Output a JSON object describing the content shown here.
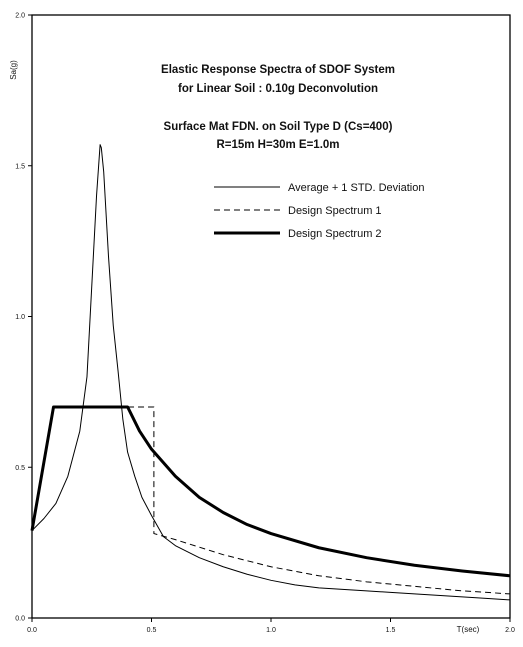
{
  "chart_data": {
    "type": "line",
    "title_lines": [
      "Elastic Response Spectra of SDOF System",
      "for Linear Soil : 0.10g Deconvolution",
      "Surface Mat FDN. on Soil Type D (Cs=400)",
      "R=15m H=30m E=1.0m"
    ],
    "xlabel": "T(sec)",
    "ylabel": "Sa(g)",
    "xlim": [
      0,
      2.0
    ],
    "ylim": [
      0,
      2.0
    ],
    "x_ticks": [
      "0.0",
      "0.5",
      "1.0",
      "1.5",
      "2.0"
    ],
    "y_ticks": [
      "0.0",
      "0.5",
      "1.0",
      "1.5",
      "2.0"
    ],
    "grid": false,
    "legend_position": "top-right",
    "series": [
      {
        "name": "Average + 1 STD. Deviation",
        "style": "solid-thin",
        "color": "#000000",
        "x": [
          0.0,
          0.05,
          0.1,
          0.15,
          0.2,
          0.23,
          0.25,
          0.27,
          0.285,
          0.29,
          0.3,
          0.32,
          0.34,
          0.36,
          0.38,
          0.4,
          0.43,
          0.46,
          0.5,
          0.55,
          0.6,
          0.7,
          0.8,
          0.9,
          1.0,
          1.1,
          1.2,
          1.3,
          1.4,
          1.5,
          1.6,
          1.7,
          1.8,
          1.9,
          2.0
        ],
        "y": [
          0.29,
          0.33,
          0.38,
          0.47,
          0.62,
          0.8,
          1.1,
          1.4,
          1.57,
          1.56,
          1.48,
          1.2,
          0.97,
          0.82,
          0.66,
          0.55,
          0.47,
          0.4,
          0.34,
          0.27,
          0.24,
          0.2,
          0.17,
          0.145,
          0.125,
          0.11,
          0.1,
          0.095,
          0.09,
          0.085,
          0.08,
          0.075,
          0.07,
          0.065,
          0.06
        ]
      },
      {
        "name": "Design Spectrum 1",
        "style": "dashed",
        "color": "#000000",
        "x": [
          0.0,
          0.09,
          0.51,
          0.51,
          0.6,
          0.8,
          1.0,
          1.2,
          1.4,
          1.6,
          1.8,
          2.0
        ],
        "y": [
          0.29,
          0.7,
          0.7,
          0.28,
          0.26,
          0.21,
          0.17,
          0.14,
          0.12,
          0.105,
          0.09,
          0.08
        ]
      },
      {
        "name": "Design Spectrum 2",
        "style": "solid-thick",
        "color": "#000000",
        "x": [
          0.0,
          0.09,
          0.4,
          0.45,
          0.5,
          0.6,
          0.7,
          0.8,
          0.9,
          1.0,
          1.2,
          1.4,
          1.6,
          1.8,
          2.0
        ],
        "y": [
          0.29,
          0.7,
          0.7,
          0.62,
          0.56,
          0.47,
          0.4,
          0.35,
          0.31,
          0.28,
          0.233,
          0.2,
          0.175,
          0.156,
          0.14
        ]
      }
    ]
  }
}
